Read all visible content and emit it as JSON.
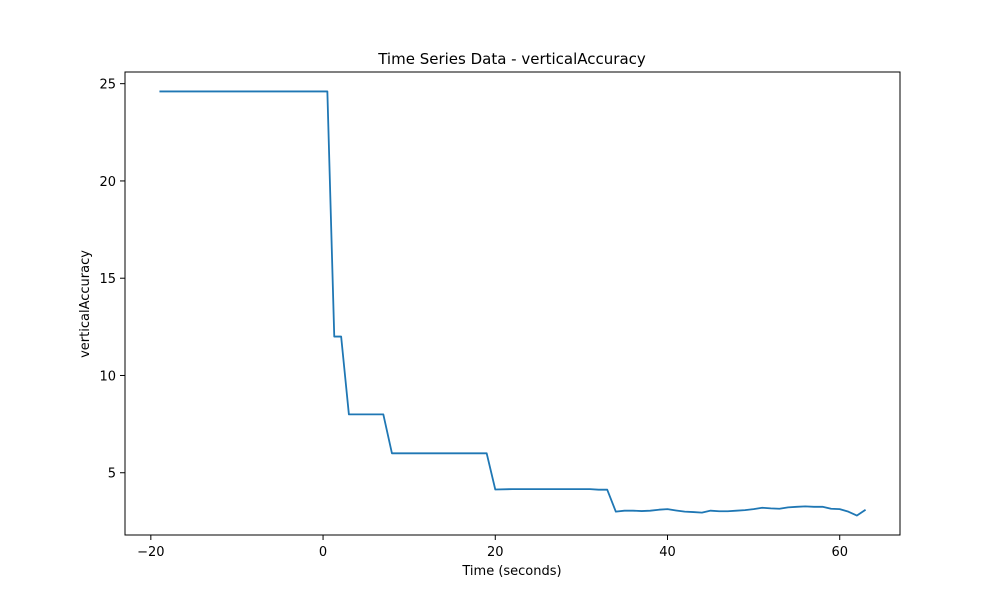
{
  "chart_data": {
    "type": "line",
    "title": "Time Series Data - verticalAccuracy",
    "xlabel": "Time (seconds)",
    "ylabel": "verticalAccuracy",
    "xlim": [
      -23,
      67
    ],
    "ylim": [
      1.8,
      25.6
    ],
    "xticks": [
      -20,
      0,
      20,
      40,
      60
    ],
    "yticks": [
      5,
      10,
      15,
      20,
      25
    ],
    "grid": false,
    "line_color": "#1f77b4",
    "series": [
      {
        "x": [
          -19,
          0.5,
          1.3,
          1.4,
          2.0,
          2.1,
          3.0,
          7.0,
          8.0,
          19.0,
          20.0,
          22.0,
          24.0,
          26.0,
          28.0,
          30.0,
          31.0,
          32.0,
          33.0,
          34.0,
          35.0,
          36.0,
          37.0,
          38.0,
          39.0,
          40.0,
          41.0,
          42.0,
          43.0,
          44.0,
          45.0,
          46.0,
          47.0,
          48.0,
          49.0,
          50.0,
          51.0,
          52.0,
          53.0,
          54.0,
          55.0,
          56.0,
          57.0,
          58.0,
          59.0,
          60.0,
          61.0,
          62.0,
          63.0
        ],
        "y": [
          24.6,
          24.6,
          12.0,
          12.0,
          12.0,
          12.0,
          8.0,
          8.0,
          6.0,
          6.0,
          4.14,
          4.16,
          4.16,
          4.16,
          4.16,
          4.16,
          4.16,
          4.13,
          4.13,
          3.0,
          3.05,
          3.05,
          3.03,
          3.05,
          3.1,
          3.13,
          3.06,
          3.0,
          2.98,
          2.95,
          3.05,
          3.02,
          3.02,
          3.05,
          3.08,
          3.13,
          3.2,
          3.17,
          3.15,
          3.22,
          3.25,
          3.27,
          3.25,
          3.25,
          3.15,
          3.13,
          3.0,
          2.8,
          3.1
        ]
      }
    ]
  }
}
